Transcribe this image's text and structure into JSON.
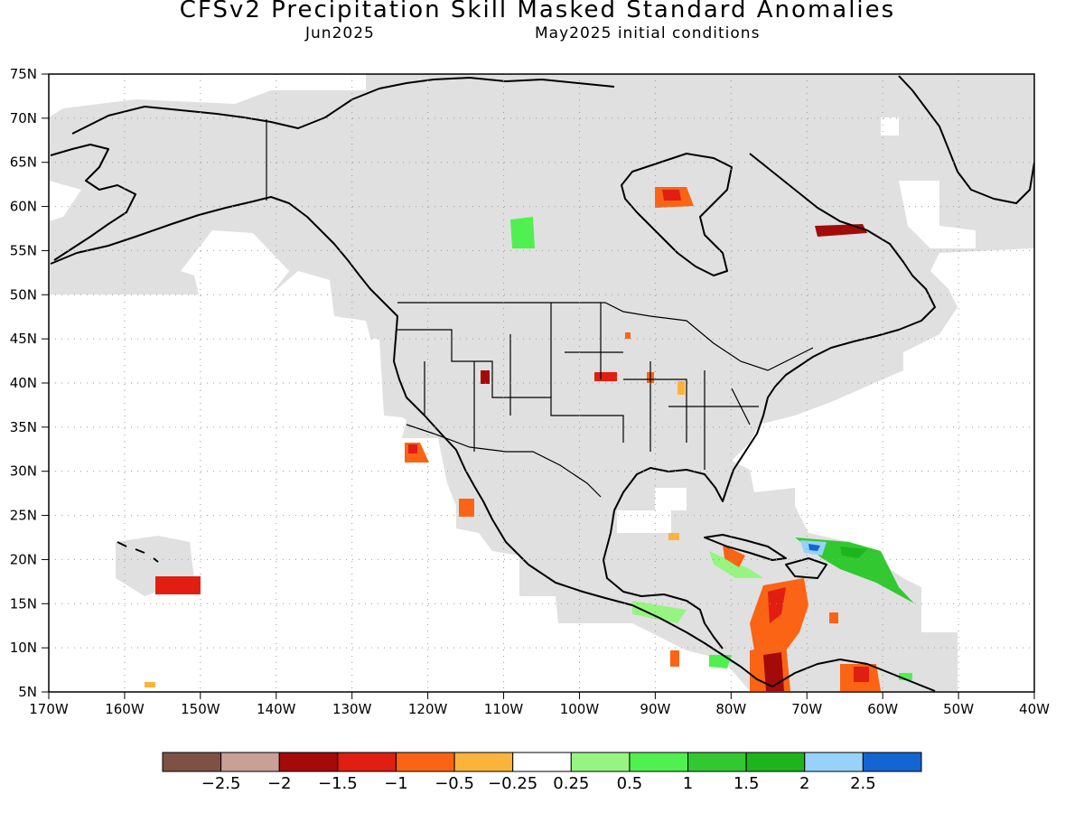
{
  "title": "CFSv2 Precipitation Skill Masked Standard Anomalies",
  "subtitle_left": "Jun2025",
  "subtitle_right": "May2025 initial conditions",
  "map": {
    "lon_range": [
      -170,
      -40
    ],
    "lat_range": [
      5,
      75
    ],
    "lat_ticks": [
      "75N",
      "70N",
      "65N",
      "60N",
      "55N",
      "50N",
      "45N",
      "40N",
      "35N",
      "30N",
      "25N",
      "20N",
      "15N",
      "10N",
      "5N"
    ],
    "lon_ticks": [
      "170W",
      "160W",
      "150W",
      "140W",
      "130W",
      "120W",
      "110W",
      "100W",
      "90W",
      "80W",
      "70W",
      "60W",
      "50W",
      "40W"
    ],
    "grid": "dotted",
    "mask_color": "#e0e0e0"
  },
  "colorbar": {
    "colors": [
      "#7d5245",
      "#c9a095",
      "#a50a0a",
      "#e01e12",
      "#fa6414",
      "#fab43c",
      "#ffffff",
      "#96f582",
      "#50f050",
      "#32c832",
      "#1eb41e",
      "#96d2fa",
      "#1464d2"
    ],
    "labels": [
      "-2.5",
      "-2",
      "-1.5",
      "-1",
      "-0.5",
      "-0.25",
      "0.25",
      "0.5",
      "1",
      "1.5",
      "2",
      "2.5"
    ]
  }
}
